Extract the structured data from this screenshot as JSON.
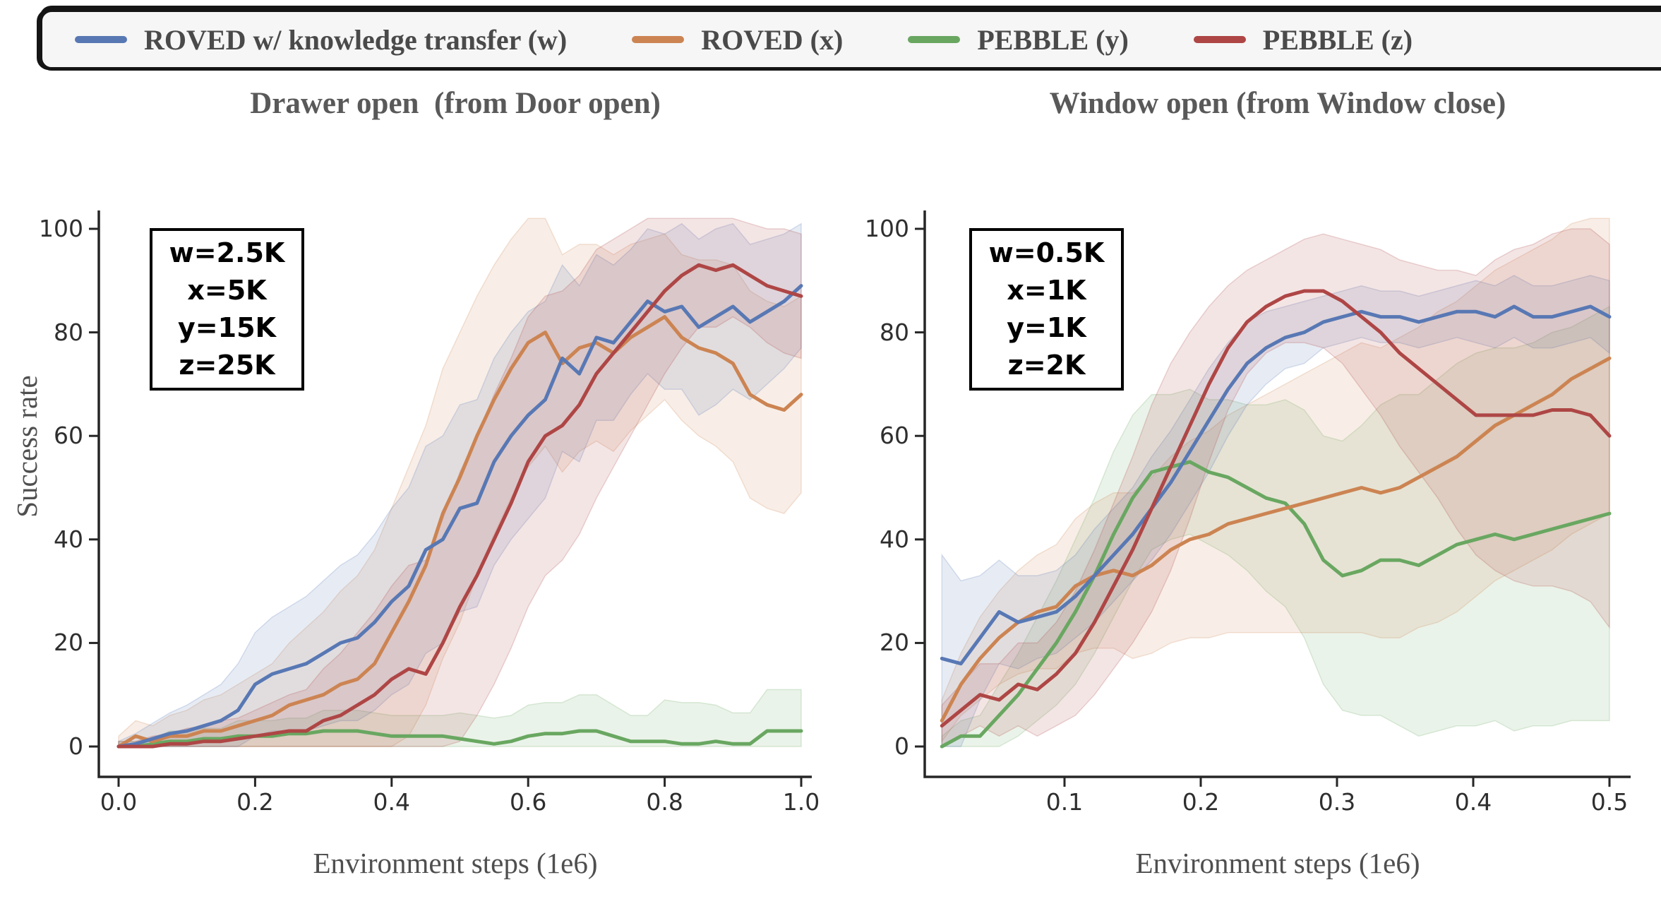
{
  "colors": {
    "blue": "#5878B4",
    "orange": "#CC8452",
    "green": "#69A761",
    "red": "#AE4645",
    "title_text": "#595959",
    "axis": "#262626",
    "legend_bg": "#f6f6f6"
  },
  "legend": {
    "items": [
      {
        "label": "ROVED w/ knowledge transfer (w)",
        "color": "#5878B4"
      },
      {
        "label": "ROVED (x)",
        "color": "#CC8452"
      },
      {
        "label": "PEBBLE (y)",
        "color": "#69A761"
      },
      {
        "label": "PEBBLE (z)",
        "color": "#AE4645"
      }
    ]
  },
  "chart_data": [
    {
      "type": "line",
      "title": "Drawer open  (from Door open)",
      "xlabel": "Environment steps (1e6)",
      "ylabel": "Success rate",
      "xlim": [
        0.0,
        1.0
      ],
      "ylim": [
        0,
        100
      ],
      "grid": false,
      "legend_position": "top-outside-shared",
      "annotation": {
        "lines": [
          "w=2.5K",
          "x=5K",
          "y=15K",
          "z=25K"
        ]
      },
      "xticks": {
        "labels": [
          "0.0",
          "0.2",
          "0.4",
          "0.6",
          "0.8",
          "1.0"
        ],
        "values": [
          0.0,
          0.2,
          0.4,
          0.6,
          0.8,
          1.0
        ]
      },
      "yticks": {
        "labels": [
          "0",
          "20",
          "40",
          "60",
          "80",
          "100"
        ],
        "values": [
          0,
          20,
          40,
          60,
          80,
          100
        ]
      },
      "x": [
        0,
        0.025,
        0.05,
        0.075,
        0.1,
        0.125,
        0.15,
        0.175,
        0.2,
        0.225,
        0.25,
        0.275,
        0.3,
        0.325,
        0.35,
        0.375,
        0.4,
        0.425,
        0.45,
        0.475,
        0.5,
        0.525,
        0.55,
        0.575,
        0.6,
        0.625,
        0.65,
        0.675,
        0.7,
        0.725,
        0.75,
        0.775,
        0.8,
        0.825,
        0.85,
        0.875,
        0.9,
        0.925,
        0.95,
        0.975,
        1.0
      ],
      "series": [
        {
          "name": "PEBBLE (y)",
          "color": "#69A761",
          "values": [
            0,
            0,
            0.5,
            1,
            1,
            1.5,
            1.5,
            2,
            2,
            2,
            2.5,
            2.5,
            3,
            3,
            3,
            2.5,
            2,
            2,
            2,
            2,
            1.5,
            1,
            0.5,
            1,
            2,
            2.5,
            2.5,
            3,
            3,
            2,
            1,
            1,
            1,
            0.5,
            0.5,
            1,
            0.5,
            0.5,
            3,
            3,
            3
          ],
          "spread": [
            1,
            1,
            1,
            2,
            2,
            2,
            2,
            3,
            3,
            3,
            3,
            3,
            4,
            4,
            4,
            4,
            4,
            4,
            4,
            4,
            5,
            5,
            5,
            5,
            6,
            6,
            6,
            7,
            7,
            6,
            5,
            5,
            8,
            8,
            8,
            7,
            6,
            6,
            8,
            8,
            8
          ]
        },
        {
          "name": "ROVED (x)",
          "color": "#CC8452",
          "values": [
            0,
            2,
            1,
            2,
            2,
            3,
            3,
            4,
            5,
            6,
            8,
            9,
            10,
            12,
            13,
            16,
            22,
            28,
            35,
            45,
            52,
            60,
            67,
            73,
            78,
            80,
            74,
            77,
            78,
            76,
            79,
            81,
            83,
            79,
            77,
            76,
            74,
            68,
            66,
            65,
            68
          ],
          "spread": [
            2,
            3,
            3,
            4,
            5,
            6,
            7,
            8,
            9,
            10,
            12,
            14,
            16,
            18,
            20,
            22,
            24,
            26,
            27,
            28,
            28,
            27,
            26,
            25,
            24,
            22,
            21,
            20,
            19,
            19,
            18,
            17,
            16,
            16,
            17,
            18,
            19,
            20,
            20,
            20,
            19
          ]
        },
        {
          "name": "ROVED w/ knowledge transfer (w)",
          "color": "#5878B4",
          "values": [
            0,
            0.5,
            1.5,
            2.5,
            3,
            4,
            5,
            7,
            12,
            14,
            15,
            16,
            18,
            20,
            21,
            24,
            28,
            31,
            38,
            40,
            46,
            47,
            55,
            60,
            64,
            67,
            75,
            72,
            79,
            78,
            82,
            86,
            84,
            85,
            81,
            83,
            85,
            82,
            84,
            86,
            89
          ],
          "spread": [
            1,
            2,
            3,
            4,
            5,
            6,
            7,
            9,
            10,
            11,
            12,
            13,
            14,
            15,
            16,
            17,
            18,
            19,
            20,
            20,
            20,
            20,
            20,
            20,
            20,
            19,
            18,
            17,
            16,
            15,
            14,
            14,
            15,
            16,
            17,
            17,
            16,
            15,
            14,
            13,
            12
          ]
        },
        {
          "name": "PEBBLE (z)",
          "color": "#AE4645",
          "values": [
            0,
            0,
            0,
            0.5,
            0.5,
            1,
            1,
            1.5,
            2,
            2.5,
            3,
            3,
            5,
            6,
            8,
            10,
            13,
            15,
            14,
            20,
            27,
            33,
            40,
            47,
            55,
            60,
            62,
            66,
            72,
            76,
            80,
            84,
            88,
            91,
            93,
            92,
            93,
            91,
            89,
            88,
            87
          ],
          "spread": [
            1,
            1,
            2,
            2,
            3,
            3,
            4,
            4,
            5,
            6,
            7,
            8,
            10,
            12,
            14,
            16,
            18,
            20,
            22,
            24,
            26,
            27,
            28,
            28,
            28,
            27,
            26,
            25,
            24,
            22,
            20,
            18,
            16,
            14,
            12,
            11,
            10,
            10,
            11,
            12,
            12
          ]
        }
      ]
    },
    {
      "type": "line",
      "title": "Window open (from Window close)",
      "xlabel": "Environment steps (1e6)",
      "ylabel": "Success rate",
      "xlim": [
        0.0,
        0.5
      ],
      "ylim": [
        0,
        100
      ],
      "grid": false,
      "legend_position": "top-outside-shared",
      "annotation": {
        "lines": [
          "w=0.5K",
          "x=1K",
          "y=1K",
          "z=2K"
        ]
      },
      "xticks": {
        "labels": [
          "0.1",
          "0.2",
          "0.3",
          "0.4",
          "0.5"
        ],
        "values": [
          0.1,
          0.2,
          0.3,
          0.4,
          0.5
        ]
      },
      "yticks": {
        "labels": [
          "0",
          "20",
          "40",
          "60",
          "80",
          "100"
        ],
        "values": [
          0,
          20,
          40,
          60,
          80,
          100
        ]
      },
      "x": [
        0.01,
        0.024,
        0.038,
        0.052,
        0.066,
        0.08,
        0.094,
        0.108,
        0.122,
        0.136,
        0.15,
        0.164,
        0.178,
        0.192,
        0.206,
        0.22,
        0.234,
        0.248,
        0.262,
        0.276,
        0.29,
        0.304,
        0.318,
        0.332,
        0.346,
        0.36,
        0.374,
        0.388,
        0.402,
        0.416,
        0.43,
        0.444,
        0.458,
        0.472,
        0.486,
        0.5
      ],
      "series": [
        {
          "name": "PEBBLE (y)",
          "color": "#69A761",
          "values": [
            0,
            2,
            2,
            6,
            10,
            15,
            20,
            26,
            33,
            41,
            48,
            53,
            54,
            55,
            53,
            52,
            50,
            48,
            47,
            43,
            36,
            33,
            34,
            36,
            36,
            35,
            37,
            39,
            40,
            41,
            40,
            41,
            42,
            43,
            44,
            45
          ],
          "spread": [
            2,
            3,
            4,
            6,
            8,
            10,
            12,
            14,
            15,
            16,
            16,
            15,
            14,
            14,
            14,
            15,
            16,
            18,
            20,
            22,
            24,
            26,
            28,
            30,
            32,
            33,
            34,
            35,
            36,
            36,
            37,
            37,
            38,
            38,
            39,
            40
          ]
        },
        {
          "name": "ROVED (x)",
          "color": "#CC8452",
          "values": [
            5,
            12,
            17,
            21,
            24,
            26,
            27,
            31,
            33,
            34,
            33,
            35,
            38,
            40,
            41,
            43,
            44,
            45,
            46,
            47,
            48,
            49,
            50,
            49,
            50,
            52,
            54,
            56,
            59,
            62,
            64,
            66,
            68,
            71,
            73,
            75
          ],
          "spread": [
            4,
            6,
            8,
            9,
            10,
            11,
            12,
            13,
            14,
            15,
            16,
            17,
            18,
            19,
            20,
            21,
            22,
            23,
            24,
            25,
            26,
            27,
            28,
            28,
            29,
            29,
            30,
            30,
            30,
            30,
            30,
            30,
            30,
            30,
            30,
            30
          ]
        },
        {
          "name": "ROVED w/ knowledge transfer (w)",
          "color": "#5878B4",
          "values": [
            17,
            16,
            21,
            26,
            24,
            25,
            26,
            29,
            33,
            37,
            41,
            46,
            51,
            57,
            63,
            69,
            74,
            77,
            79,
            80,
            82,
            83,
            84,
            83,
            83,
            82,
            83,
            84,
            84,
            83,
            85,
            83,
            83,
            84,
            85,
            83
          ],
          "spread": [
            20,
            16,
            12,
            10,
            9,
            8,
            8,
            8,
            9,
            9,
            9,
            10,
            10,
            10,
            10,
            9,
            8,
            7,
            6,
            6,
            5,
            5,
            5,
            5,
            5,
            5,
            5,
            5,
            6,
            6,
            6,
            6,
            6,
            6,
            6,
            7
          ]
        },
        {
          "name": "PEBBLE (z)",
          "color": "#AE4645",
          "values": [
            4,
            7,
            10,
            9,
            12,
            11,
            14,
            18,
            24,
            31,
            38,
            46,
            54,
            62,
            70,
            77,
            82,
            85,
            87,
            88,
            88,
            86,
            83,
            80,
            76,
            73,
            70,
            67,
            64,
            64,
            64,
            64,
            65,
            65,
            64,
            60
          ],
          "spread": [
            4,
            5,
            6,
            7,
            8,
            9,
            10,
            12,
            14,
            16,
            18,
            20,
            20,
            18,
            15,
            12,
            10,
            9,
            9,
            10,
            11,
            12,
            14,
            16,
            18,
            20,
            22,
            25,
            27,
            30,
            32,
            33,
            34,
            35,
            36,
            37
          ]
        }
      ]
    }
  ]
}
